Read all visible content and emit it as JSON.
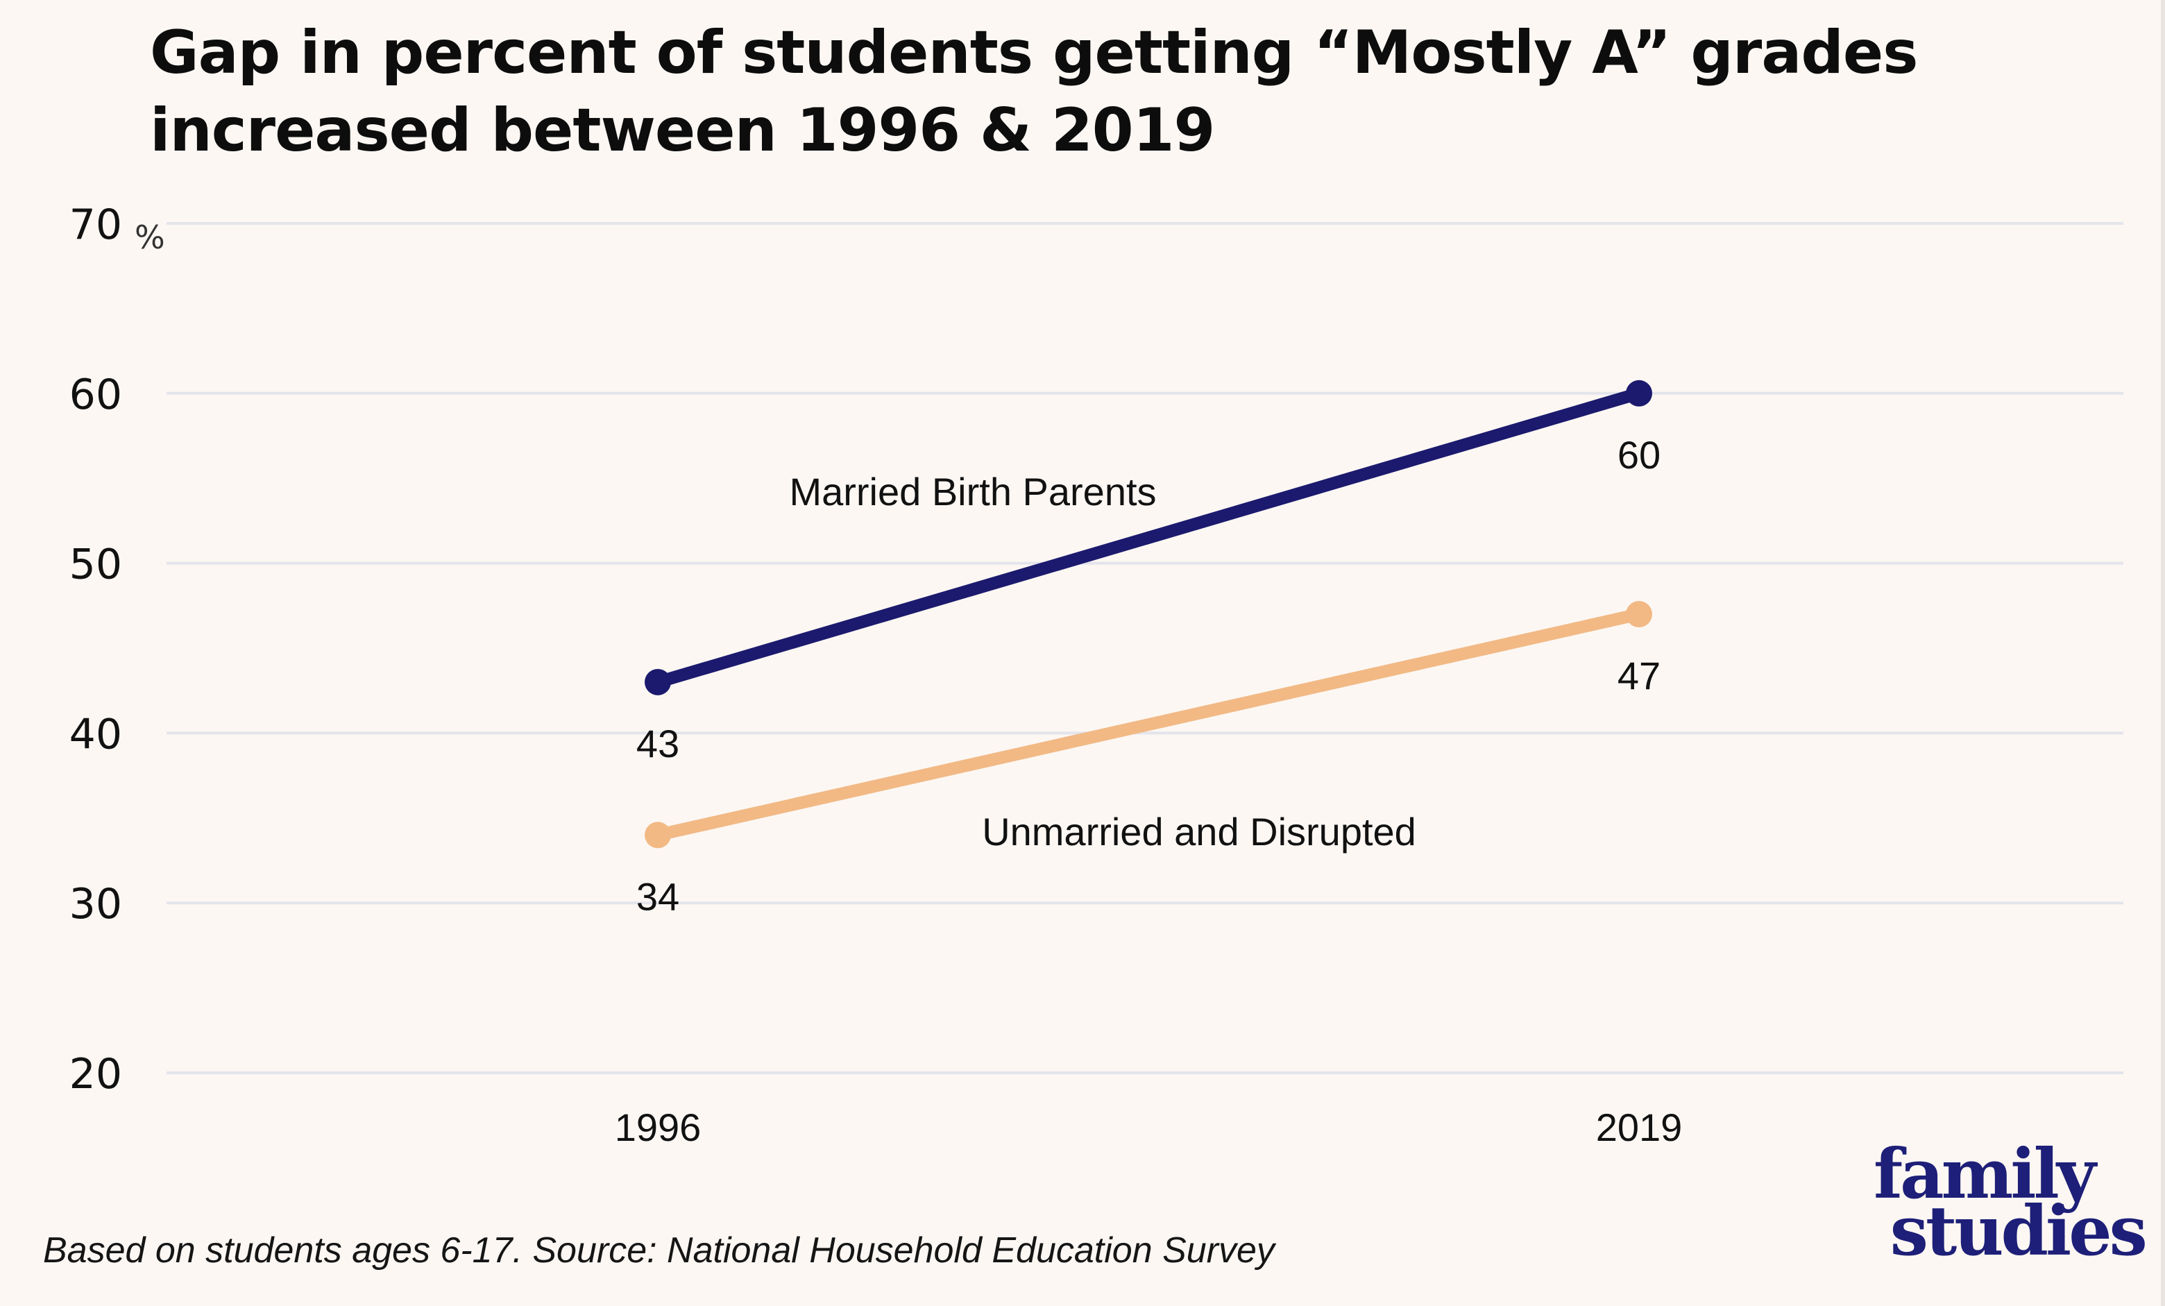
{
  "chart_data": {
    "type": "line",
    "title": "Gap in percent of students getting “Mostly A” grades increased between 1996 & 2019",
    "xlabel": "",
    "ylabel": "",
    "y_unit_label": "%",
    "x": [
      "1996",
      "2019"
    ],
    "ylim": [
      20,
      70
    ],
    "yticks": [
      20,
      30,
      40,
      50,
      60,
      70
    ],
    "grid": true,
    "legend": "inline labels",
    "series": [
      {
        "name": "Married Birth Parents",
        "values": [
          43,
          60
        ],
        "data_labels": [
          "43",
          "60"
        ],
        "color": "#1b1a6e"
      },
      {
        "name": "Unmarried and Disrupted",
        "values": [
          34,
          47
        ],
        "data_labels": [
          "34",
          "47"
        ],
        "color": "#f2b985"
      }
    ]
  },
  "footnote": "Based on students ages 6-17. Source: National Household Education Survey",
  "logo": {
    "line1": "family",
    "line2": "studies",
    "color": "#1e1f78"
  },
  "colors": {
    "background": "#fcf7f3",
    "gridline": "#e4e4ec"
  }
}
